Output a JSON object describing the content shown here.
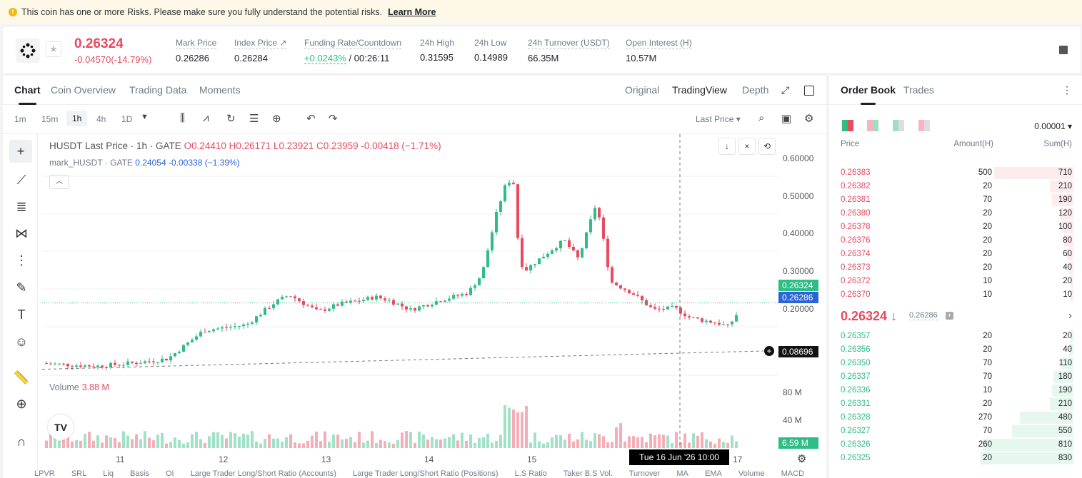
{
  "banner": {
    "text": "This coin has one or more Risks. Please make sure you fully understand the potential risks.",
    "link": "Learn More"
  },
  "ticker": {
    "last_price": "0.26324",
    "change": "-0.04570(-14.79%)",
    "stats": [
      {
        "label": "Mark Price",
        "value": "0.26286"
      },
      {
        "label": "Index Price ↗",
        "value": "0.26284"
      },
      {
        "label": "Funding Rate/Countdown",
        "value_green": "+0.0243%",
        "value": " / 00:26:11"
      },
      {
        "label": "24h High",
        "value": "0.31595"
      },
      {
        "label": "24h Low",
        "value": "0.14989"
      },
      {
        "label": "24h Turnover (USDT)",
        "value": "66.35M"
      },
      {
        "label": "Open Interest (H)",
        "value": "10.57M"
      }
    ]
  },
  "chart_tabs": [
    "Chart",
    "Coin Overview",
    "Trading Data",
    "Moments"
  ],
  "view_tabs": [
    "Original",
    "TradingView",
    "Depth"
  ],
  "timeframes": [
    "1m",
    "15m",
    "1h",
    "4h",
    "1D"
  ],
  "price_type": "Last Price ▾",
  "legend": {
    "title": "HUSDT Last Price · 1h · GATE",
    "o": "O0.24410",
    "h": "H0.26171",
    "l": "L0.23921",
    "c": "C0.23959",
    "chg": "-0.00418 (−1.71%)",
    "mark": "mark_HUSDT · GATE",
    "mark_val": "0.24054",
    "mark_chg": "-0.00338 (−1.39%)"
  },
  "y_labels": [
    "0.60000",
    "0.50000",
    "0.40000",
    "0.30000",
    "0.20000"
  ],
  "price_tags": {
    "last": "0.26324",
    "mark": "0.26286",
    "cross": "0.08696"
  },
  "volume": {
    "label": "Volume",
    "value": "3.88 M",
    "y_labels": [
      "80 M",
      "40 M"
    ],
    "tag": "6.59 M"
  },
  "x_labels": [
    "11",
    "12",
    "13",
    "14",
    "15",
    "17"
  ],
  "crosshair_time": "Tue 16 Jun '26   10:00",
  "indicators": [
    "LPVR",
    "SRL",
    "Liq",
    "Basis",
    "OI",
    "Large Trader Long/Short Ratio (Accounts)",
    "Large Trader Long/Short Ratio (Positions)",
    "L.S Ratio",
    "Taker B.S Vol.",
    "Turnover",
    "MA",
    "EMA",
    "Volume",
    "MACD"
  ],
  "order_book": {
    "tabs": [
      "Order Book",
      "Trades"
    ],
    "tick": "0.00001 ▾",
    "headers": [
      "Price",
      "Amount(H)",
      "Sum(H)"
    ],
    "asks": [
      {
        "price": "0.26383",
        "amount": "500",
        "sum": "710"
      },
      {
        "price": "0.26382",
        "amount": "20",
        "sum": "210"
      },
      {
        "price": "0.26381",
        "amount": "70",
        "sum": "190"
      },
      {
        "price": "0.26380",
        "amount": "20",
        "sum": "120"
      },
      {
        "price": "0.26378",
        "amount": "20",
        "sum": "100"
      },
      {
        "price": "0.26376",
        "amount": "20",
        "sum": "80"
      },
      {
        "price": "0.26374",
        "amount": "20",
        "sum": "60"
      },
      {
        "price": "0.26373",
        "amount": "20",
        "sum": "40"
      },
      {
        "price": "0.26372",
        "amount": "10",
        "sum": "20"
      },
      {
        "price": "0.26370",
        "amount": "10",
        "sum": "10"
      }
    ],
    "mid": "0.26324 ↓",
    "mid_mark": "0.26286",
    "bids": [
      {
        "price": "0.26357",
        "amount": "20",
        "sum": "20"
      },
      {
        "price": "0.26356",
        "amount": "20",
        "sum": "40"
      },
      {
        "price": "0.26350",
        "amount": "70",
        "sum": "110"
      },
      {
        "price": "0.26337",
        "amount": "70",
        "sum": "180"
      },
      {
        "price": "0.26336",
        "amount": "10",
        "sum": "190"
      },
      {
        "price": "0.26331",
        "amount": "20",
        "sum": "210"
      },
      {
        "price": "0.26328",
        "amount": "270",
        "sum": "480"
      },
      {
        "price": "0.26327",
        "amount": "70",
        "sum": "550"
      },
      {
        "price": "0.26326",
        "amount": "260",
        "sum": "810"
      },
      {
        "price": "0.26325",
        "amount": "20",
        "sum": "830"
      }
    ]
  },
  "colors": {
    "up": "#2ebd85",
    "down": "#e84a5f",
    "mark": "#2b63d9"
  }
}
